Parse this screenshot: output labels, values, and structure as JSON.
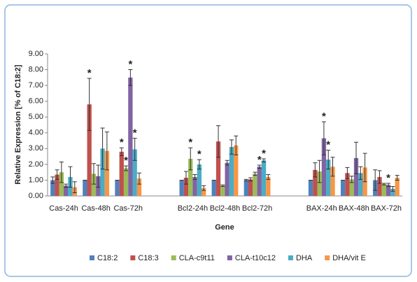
{
  "chart_data": {
    "type": "bar",
    "y_label": "Relative Expression [% of C18:2]",
    "x_label": "Gene",
    "categories": [
      "Cas-24h",
      "Cas-48h",
      "Cas-72h",
      null,
      "Bcl2-24h",
      "Bcl2-48h",
      "Bcl2-72h",
      null,
      "BAX-24h",
      "BAX-48h",
      "BAX-72h"
    ],
    "ylim": [
      0,
      9
    ],
    "yticks": [
      {
        "value": 0,
        "label": "0.00"
      },
      {
        "value": 1,
        "label": "1.00"
      },
      {
        "value": 2,
        "label": "2.00"
      },
      {
        "value": 3,
        "label": "3.00"
      },
      {
        "value": 4,
        "label": "4.00"
      },
      {
        "value": 5,
        "label": "5.00"
      },
      {
        "value": 6,
        "label": "6.00"
      },
      {
        "value": 7,
        "label": "7.00"
      },
      {
        "value": 8,
        "label": "8.00"
      },
      {
        "value": 9,
        "label": "9.00"
      }
    ],
    "legend": "bottom",
    "series": [
      {
        "name": "C18:2",
        "color": "#4f81bd",
        "values": [
          1.0,
          1.0,
          1.0,
          null,
          1.0,
          1.0,
          1.0,
          null,
          1.0,
          1.0,
          1.0
        ],
        "errors": [
          0.2,
          0,
          0,
          null,
          0,
          0,
          0.05,
          null,
          0,
          0,
          0.65
        ],
        "annotations": [
          null,
          null,
          null,
          null,
          null,
          null,
          null,
          null,
          null,
          null,
          null
        ]
      },
      {
        "name": "C18:3",
        "color": "#c0504d",
        "values": [
          1.35,
          5.8,
          2.8,
          null,
          1.15,
          3.45,
          1.05,
          null,
          1.65,
          1.45,
          1.2
        ],
        "errors": [
          0.3,
          1.65,
          0.25,
          null,
          0.4,
          1.0,
          0.1,
          null,
          0.45,
          0.35,
          0.4
        ],
        "annotations": [
          null,
          "*",
          "*",
          null,
          null,
          null,
          null,
          null,
          null,
          null,
          null
        ]
      },
      {
        "name": "CLA-c9t11",
        "color": "#9bbb59",
        "values": [
          1.5,
          1.4,
          1.75,
          null,
          2.35,
          0.65,
          1.4,
          null,
          1.55,
          1.05,
          0.75
        ],
        "errors": [
          0.65,
          0.65,
          0.15,
          null,
          0.7,
          0.05,
          0.1,
          null,
          0.7,
          0.2,
          0.05
        ],
        "annotations": [
          null,
          null,
          "*",
          null,
          "*",
          null,
          null,
          null,
          null,
          null,
          null
        ]
      },
      {
        "name": "CLA-t10c12",
        "color": "#8064a2",
        "values": [
          0.65,
          1.25,
          7.5,
          null,
          1.2,
          2.1,
          1.85,
          null,
          3.65,
          2.4,
          0.7
        ],
        "errors": [
          0.1,
          0.7,
          0.5,
          null,
          0.15,
          0.15,
          0.1,
          null,
          1.05,
          1.0,
          0.1
        ],
        "annotations": [
          null,
          null,
          "*",
          null,
          null,
          null,
          "*",
          null,
          "*",
          null,
          "*"
        ]
      },
      {
        "name": "DHA",
        "color": "#4bacc6",
        "values": [
          1.2,
          3.0,
          2.95,
          null,
          2.0,
          3.1,
          2.25,
          null,
          2.3,
          1.45,
          0.45
        ],
        "errors": [
          0.65,
          1.3,
          0.7,
          null,
          0.3,
          0.45,
          0.1,
          null,
          0.6,
          0.4,
          0.15
        ],
        "annotations": [
          null,
          null,
          "*",
          null,
          "*",
          null,
          "*",
          null,
          "*",
          null,
          null
        ]
      },
      {
        "name": "DHA/vit E",
        "color": "#f79646",
        "values": [
          0.55,
          2.85,
          1.1,
          null,
          0.5,
          3.2,
          1.2,
          null,
          1.85,
          1.8,
          1.15
        ],
        "errors": [
          0.35,
          1.2,
          0.35,
          null,
          0.15,
          0.6,
          0.15,
          null,
          0.6,
          0.9,
          0.15
        ],
        "annotations": [
          null,
          null,
          null,
          null,
          null,
          null,
          null,
          null,
          null,
          null,
          null
        ]
      }
    ]
  }
}
